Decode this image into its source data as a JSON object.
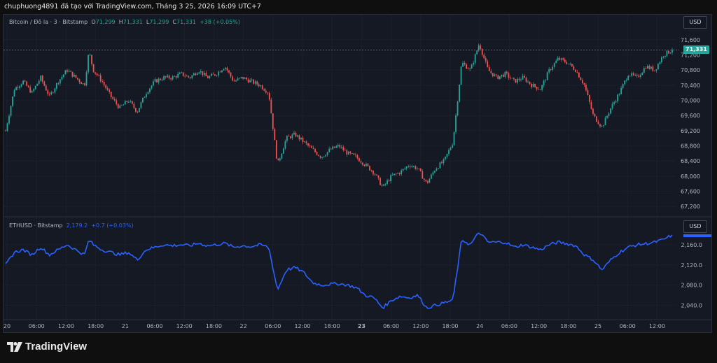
{
  "header": {
    "title": "chuphuong4891 đã tạo với TradingView.com, Tháng 3 25, 2026 16:09 UTC+7"
  },
  "main_pane": {
    "symbol": "Bitcoin / Đô la · 3 · Bitstamp",
    "ohlc": {
      "o_label": "O",
      "o": "71,299",
      "h_label": "H",
      "h": "71,331",
      "l_label": "L",
      "l": "71,299",
      "c_label": "C",
      "c": "71,331",
      "change": "+38 (+0.05%)"
    },
    "currency_button": "USD",
    "last_price_tag": "71,331",
    "y_ticks": [
      "71,600",
      "71,200",
      "70,800",
      "70,400",
      "70,000",
      "69,600",
      "69,200",
      "68,800",
      "68,400",
      "68,000",
      "67,600",
      "67,200"
    ]
  },
  "sub_pane": {
    "symbol": "ETHUSD · Bitstamp",
    "value": "2,179.2",
    "change": "+0.7 (+0.03%)",
    "currency_button": "USD",
    "last_price_tag": "",
    "y_ticks": [
      "2,160.0",
      "2,120.0",
      "2,080.0",
      "2,040.0"
    ]
  },
  "x_axis": {
    "labels": [
      "20",
      "06:00",
      "12:00",
      "18:00",
      "21",
      "06:00",
      "12:00",
      "18:00",
      "22",
      "06:00",
      "12:00",
      "18:00",
      "23",
      "06:00",
      "12:00",
      "18:00",
      "24",
      "06:00",
      "12:00",
      "18:00",
      "25",
      "06:00",
      "12:00"
    ]
  },
  "footer": {
    "brand": "TradingView",
    "logo_icon": "tradingview-logo-icon"
  },
  "colors": {
    "up": "#26a69a",
    "down": "#ef5350",
    "eth_line": "#2962ff",
    "background": "#151924",
    "grid": "#1f2330",
    "text": "#b2b5be"
  },
  "chart_data": [
    {
      "type": "candlestick",
      "title": "Bitcoin / Đô la · 3 · Bitstamp",
      "ylim": [
        67000,
        71800
      ],
      "last": 71331,
      "path": [
        [
          0,
          69200
        ],
        [
          1,
          70300
        ],
        [
          2,
          70500
        ],
        [
          3,
          70200
        ],
        [
          4,
          70600
        ],
        [
          5,
          70100
        ],
        [
          6,
          70500
        ],
        [
          7,
          70800
        ],
        [
          8,
          70600
        ],
        [
          9,
          70400
        ],
        [
          9.5,
          71300
        ],
        [
          10,
          70800
        ],
        [
          11,
          70500
        ],
        [
          12,
          70100
        ],
        [
          13,
          69800
        ],
        [
          14,
          70000
        ],
        [
          15,
          69700
        ],
        [
          16,
          70200
        ],
        [
          17,
          70500
        ],
        [
          18,
          70600
        ],
        [
          19,
          70600
        ],
        [
          20,
          70700
        ],
        [
          21,
          70600
        ],
        [
          22,
          70800
        ],
        [
          23,
          70600
        ],
        [
          24,
          70700
        ],
        [
          25,
          70900
        ],
        [
          26,
          70500
        ],
        [
          27,
          70600
        ],
        [
          28,
          70500
        ],
        [
          29,
          70400
        ],
        [
          30,
          70200
        ],
        [
          31,
          68300
        ],
        [
          32,
          69000
        ],
        [
          33,
          69100
        ],
        [
          34,
          68900
        ],
        [
          35,
          68700
        ],
        [
          36,
          68500
        ],
        [
          37,
          68700
        ],
        [
          38,
          68800
        ],
        [
          39,
          68600
        ],
        [
          40,
          68500
        ],
        [
          41,
          68300
        ],
        [
          42,
          68100
        ],
        [
          43,
          67700
        ],
        [
          44,
          68000
        ],
        [
          45,
          68100
        ],
        [
          46,
          68300
        ],
        [
          47,
          68200
        ],
        [
          48,
          67800
        ],
        [
          49,
          68200
        ],
        [
          50,
          68400
        ],
        [
          51,
          68900
        ],
        [
          52,
          71000
        ],
        [
          53,
          70800
        ],
        [
          54,
          71500
        ],
        [
          55,
          70800
        ],
        [
          56,
          70600
        ],
        [
          57,
          70700
        ],
        [
          58,
          70500
        ],
        [
          59,
          70600
        ],
        [
          60,
          70400
        ],
        [
          61,
          70300
        ],
        [
          62,
          70800
        ],
        [
          63,
          71100
        ],
        [
          64,
          71000
        ],
        [
          65,
          70800
        ],
        [
          66,
          70400
        ],
        [
          67,
          69600
        ],
        [
          68,
          69300
        ],
        [
          69,
          69800
        ],
        [
          70,
          70200
        ],
        [
          71,
          70700
        ],
        [
          72,
          70600
        ],
        [
          73,
          70900
        ],
        [
          74,
          70800
        ],
        [
          75,
          71200
        ],
        [
          76,
          71331
        ]
      ]
    },
    {
      "type": "line",
      "title": "ETHUSD · Bitstamp",
      "ylim": [
        2020,
        2200
      ],
      "last": 2179.2,
      "path": [
        [
          0,
          2120
        ],
        [
          1,
          2145
        ],
        [
          2,
          2150
        ],
        [
          3,
          2140
        ],
        [
          4,
          2155
        ],
        [
          5,
          2140
        ],
        [
          6,
          2150
        ],
        [
          7,
          2160
        ],
        [
          8,
          2150
        ],
        [
          9,
          2140
        ],
        [
          9.5,
          2170
        ],
        [
          10,
          2160
        ],
        [
          11,
          2150
        ],
        [
          12,
          2145
        ],
        [
          13,
          2140
        ],
        [
          14,
          2145
        ],
        [
          15,
          2130
        ],
        [
          16,
          2150
        ],
        [
          17,
          2155
        ],
        [
          18,
          2160
        ],
        [
          19,
          2158
        ],
        [
          20,
          2160
        ],
        [
          21,
          2158
        ],
        [
          22,
          2163
        ],
        [
          23,
          2158
        ],
        [
          24,
          2160
        ],
        [
          25,
          2163
        ],
        [
          26,
          2155
        ],
        [
          27,
          2158
        ],
        [
          28,
          2156
        ],
        [
          29,
          2160
        ],
        [
          30,
          2155
        ],
        [
          31,
          2070
        ],
        [
          32,
          2110
        ],
        [
          33,
          2115
        ],
        [
          34,
          2105
        ],
        [
          35,
          2085
        ],
        [
          36,
          2080
        ],
        [
          37,
          2082
        ],
        [
          38,
          2083
        ],
        [
          39,
          2080
        ],
        [
          40,
          2075
        ],
        [
          41,
          2060
        ],
        [
          42,
          2055
        ],
        [
          43,
          2035
        ],
        [
          44,
          2050
        ],
        [
          45,
          2058
        ],
        [
          46,
          2055
        ],
        [
          47,
          2060
        ],
        [
          48,
          2035
        ],
        [
          49,
          2040
        ],
        [
          50,
          2045
        ],
        [
          51,
          2050
        ],
        [
          52,
          2170
        ],
        [
          53,
          2160
        ],
        [
          54,
          2185
        ],
        [
          55,
          2165
        ],
        [
          56,
          2165
        ],
        [
          57,
          2165
        ],
        [
          58,
          2155
        ],
        [
          59,
          2160
        ],
        [
          60,
          2155
        ],
        [
          61,
          2150
        ],
        [
          62,
          2160
        ],
        [
          63,
          2165
        ],
        [
          64,
          2162
        ],
        [
          65,
          2158
        ],
        [
          66,
          2140
        ],
        [
          67,
          2130
        ],
        [
          68,
          2110
        ],
        [
          69,
          2130
        ],
        [
          70,
          2145
        ],
        [
          71,
          2155
        ],
        [
          72,
          2160
        ],
        [
          73,
          2162
        ],
        [
          74,
          2165
        ],
        [
          75,
          2170
        ],
        [
          76,
          2179.2
        ]
      ]
    }
  ]
}
